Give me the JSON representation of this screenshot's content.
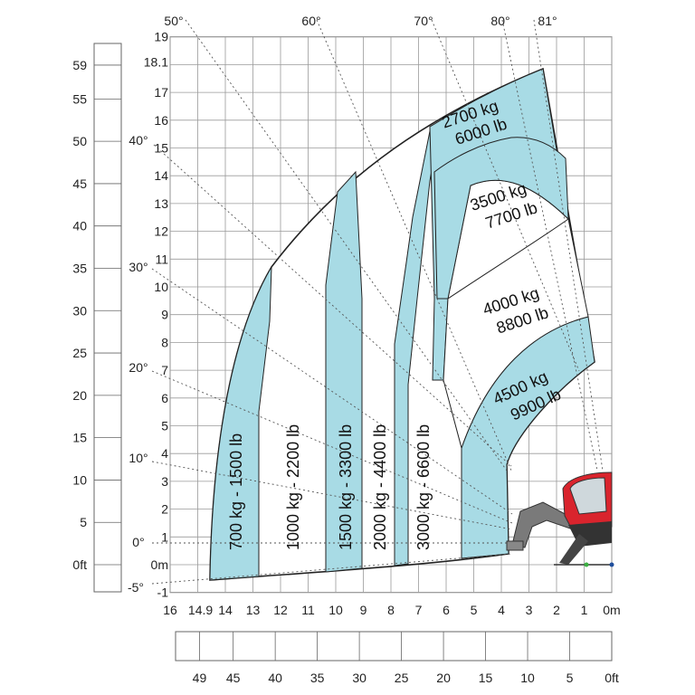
{
  "colors": {
    "zone_fill": "#a8dbe5",
    "grid": "#8a8a8a",
    "outline": "#222222",
    "machine_red": "#d9242d",
    "ray": "#555555"
  },
  "chart_data": {
    "type": "load-chart",
    "x_ticks": [
      "16",
      "14.9",
      "14",
      "13",
      "12",
      "11",
      "10",
      "9",
      "8",
      "7",
      "6",
      "5",
      "4",
      "3",
      "2",
      "1",
      "0m"
    ],
    "y_ticks": [
      "19",
      "18.1",
      "17",
      "16",
      "15",
      "14",
      "13",
      "12",
      "11",
      "10",
      "9",
      "8",
      "7",
      "6",
      "5",
      "4",
      "3",
      "2",
      "1",
      "0m",
      "-1"
    ],
    "ft_left_ticks": [
      "59",
      "55",
      "50",
      "45",
      "40",
      "35",
      "30",
      "25",
      "20",
      "15",
      "10",
      "5",
      "0ft"
    ],
    "ft_bottom_ticks": [
      "49",
      "45",
      "40",
      "35",
      "30",
      "25",
      "20",
      "15",
      "10",
      "5",
      "0ft"
    ],
    "angle_labels": [
      "50°",
      "60°",
      "70°",
      "80°",
      "81°",
      "40°",
      "30°",
      "20°",
      "10°",
      "0°",
      "-5°"
    ],
    "xlim": [
      16,
      0
    ],
    "ylim": [
      -1,
      19
    ],
    "max_reach_m": 14.9,
    "max_height_m": 18.1,
    "vertical_zones": [
      {
        "label": "700 kg - 1500 lb"
      },
      {
        "label": "1000 kg - 2200 lb"
      },
      {
        "label": "1500 kg - 3300 lb"
      },
      {
        "label": "2000 kg - 4400 lb"
      },
      {
        "label": "3000 kg - 6600 lb"
      }
    ],
    "arc_zones": [
      {
        "kg": "2700 kg",
        "lb": "6000 lb"
      },
      {
        "kg": "3500 kg",
        "lb": "7700 lb"
      },
      {
        "kg": "4000 kg",
        "lb": "8800 lb"
      },
      {
        "kg": "4500 kg",
        "lb": "9900 lb"
      }
    ]
  }
}
